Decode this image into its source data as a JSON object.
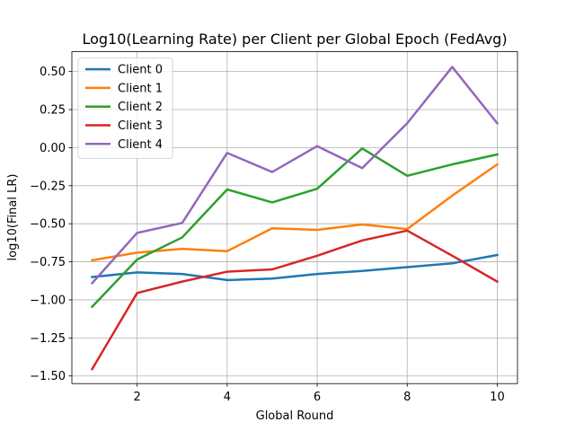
{
  "chart_data": {
    "type": "line",
    "title": "Log10(Learning Rate) per Client per Global Epoch (FedAvg)",
    "xlabel": "Global Round",
    "ylabel": "log10(Final LR)",
    "x": [
      1,
      2,
      3,
      4,
      5,
      6,
      7,
      8,
      9,
      10
    ],
    "xlim": [
      0.55,
      10.45
    ],
    "ylim": [
      -1.55,
      0.63
    ],
    "xticks": [
      2,
      4,
      6,
      8,
      10
    ],
    "xtick_labels": [
      "2",
      "4",
      "6",
      "8",
      "10"
    ],
    "yticks": [
      -1.5,
      -1.25,
      -1.0,
      -0.75,
      -0.5,
      -0.25,
      0.0,
      0.25,
      0.5
    ],
    "ytick_labels": [
      "−1.50",
      "−1.25",
      "−1.00",
      "−0.75",
      "−0.50",
      "−0.25",
      "0.00",
      "0.25",
      "0.50"
    ],
    "grid": true,
    "legend_position": "top-left",
    "series": [
      {
        "name": "Client 0",
        "color": "#1f77b4",
        "values": [
          -0.85,
          -0.82,
          -0.83,
          -0.87,
          -0.86,
          -0.83,
          -0.81,
          -0.785,
          -0.76,
          -0.705
        ]
      },
      {
        "name": "Client 1",
        "color": "#ff7f0e",
        "values": [
          -0.74,
          -0.69,
          -0.665,
          -0.68,
          -0.53,
          -0.54,
          -0.505,
          -0.535,
          -0.315,
          -0.11
        ]
      },
      {
        "name": "Client 2",
        "color": "#2ca02c",
        "values": [
          -1.045,
          -0.735,
          -0.59,
          -0.275,
          -0.36,
          -0.27,
          -0.005,
          -0.185,
          -0.11,
          -0.045
        ]
      },
      {
        "name": "Client 3",
        "color": "#d62728",
        "values": [
          -1.455,
          -0.955,
          -0.88,
          -0.815,
          -0.8,
          -0.71,
          -0.61,
          -0.545,
          -0.71,
          -0.88
        ]
      },
      {
        "name": "Client 4",
        "color": "#9467bd",
        "values": [
          -0.89,
          -0.56,
          -0.495,
          -0.035,
          -0.16,
          0.01,
          -0.135,
          0.16,
          0.53,
          0.16
        ]
      }
    ]
  }
}
